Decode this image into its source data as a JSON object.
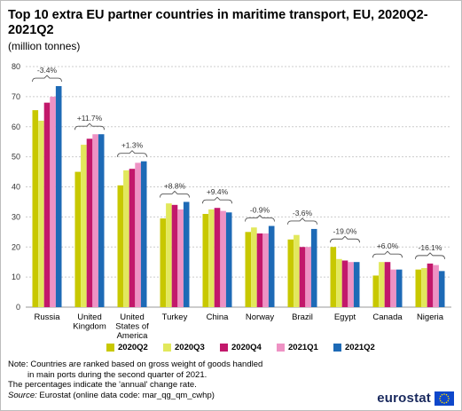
{
  "title": "Top 10 extra EU partner countries in maritime transport, EU, 2020Q2-2021Q2",
  "subtitle": "(million tonnes)",
  "colors": {
    "2020Q2": "#c8c800",
    "2020Q3": "#e2e85c",
    "2020Q4": "#c2186b",
    "2021Q1": "#ee92c4",
    "2021Q2": "#1d6ab6",
    "axis": "#999999",
    "gridline": "#cccccc"
  },
  "chart_data": {
    "type": "bar",
    "categories": [
      "Russia",
      "United Kingdom",
      "United States of America",
      "Turkey",
      "China",
      "Norway",
      "Brazil",
      "Egypt",
      "Canada",
      "Nigeria"
    ],
    "category_lines": [
      [
        "Russia"
      ],
      [
        "United",
        "Kingdom"
      ],
      [
        "United",
        "States of",
        "America"
      ],
      [
        "Turkey"
      ],
      [
        "China"
      ],
      [
        "Norway"
      ],
      [
        "Brazil"
      ],
      [
        "Egypt"
      ],
      [
        "Canada"
      ],
      [
        "Nigeria"
      ]
    ],
    "series": [
      {
        "name": "2020Q2",
        "values": [
          65.5,
          45.0,
          40.5,
          29.5,
          31.0,
          25.0,
          22.5,
          20.0,
          10.5,
          12.5
        ]
      },
      {
        "name": "2020Q3",
        "values": [
          62.0,
          54.0,
          45.5,
          34.5,
          32.5,
          26.5,
          24.0,
          16.0,
          15.0,
          13.0
        ]
      },
      {
        "name": "2020Q4",
        "values": [
          68.0,
          56.0,
          46.0,
          34.0,
          33.0,
          24.5,
          20.0,
          15.5,
          15.0,
          14.5
        ]
      },
      {
        "name": "2021Q1",
        "values": [
          70.0,
          57.5,
          48.0,
          32.5,
          32.0,
          24.5,
          20.0,
          15.0,
          12.5,
          14.0
        ]
      },
      {
        "name": "2021Q2",
        "values": [
          73.5,
          57.5,
          48.5,
          35.0,
          31.5,
          27.0,
          26.0,
          15.0,
          12.5,
          12.0
        ]
      }
    ],
    "annual_change": [
      "-3.4%",
      "+11.7%",
      "+1.3%",
      "+8.8%",
      "+9.4%",
      "-0.9%",
      "-3.6%",
      "-19.0%",
      "+6.0%",
      "-16.1%"
    ],
    "ylim": [
      0,
      80
    ],
    "yticks": [
      0,
      10,
      20,
      30,
      40,
      50,
      60,
      70,
      80
    ],
    "grid": true,
    "legend_position": "bottom"
  },
  "notes": {
    "line1": "Note: Countries are ranked based on gross weight of goods handled",
    "line2": "in main ports during the second quarter of 2021.",
    "line3": "The percentages indicate the 'annual' change rate.",
    "source_label": "Source:",
    "source_text": " Eurostat (online data code: mar_qg_qm_cwhp)"
  },
  "logo": {
    "text": "eurostat",
    "icon": "eu-flag-icon"
  }
}
